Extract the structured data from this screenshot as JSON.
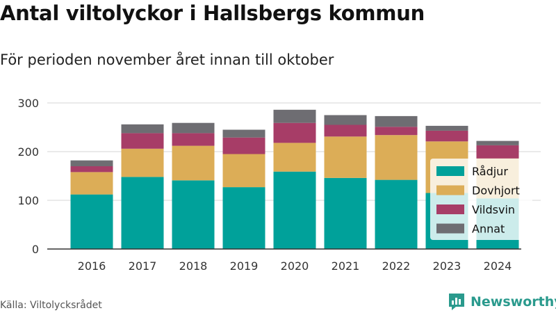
{
  "title": "Antal viltolyckor i Hallsbergs kommun",
  "subtitle": "För perioden november året innan till oktober",
  "source": "Källa: Viltolycksrådet",
  "brand": {
    "name": "Newsworthy",
    "icon": "newsworthy-logo-icon"
  },
  "colors": {
    "Rådjur": "#00a19a",
    "Dovhjort": "#dcad57",
    "Vildsvin": "#a73d67",
    "Annat": "#6e6d72",
    "grid": "#dddddd",
    "axis": "#333333"
  },
  "chart_data": {
    "type": "bar",
    "stacked": true,
    "categories": [
      "2016",
      "2017",
      "2018",
      "2019",
      "2020",
      "2021",
      "2022",
      "2023",
      "2024"
    ],
    "series": [
      {
        "name": "Rådjur",
        "values": [
          112,
          148,
          141,
          127,
          159,
          146,
          142,
          115,
          104
        ]
      },
      {
        "name": "Dovhjort",
        "values": [
          46,
          58,
          71,
          68,
          59,
          85,
          92,
          106,
          82
        ]
      },
      {
        "name": "Vildsvin",
        "values": [
          12,
          32,
          26,
          34,
          41,
          24,
          17,
          22,
          27
        ]
      },
      {
        "name": "Annat",
        "values": [
          12,
          18,
          21,
          16,
          27,
          20,
          22,
          10,
          9
        ]
      }
    ],
    "ylim": [
      0,
      300
    ],
    "yticks": [
      0,
      100,
      200,
      300
    ],
    "grid": true,
    "legend": {
      "placement": "right",
      "entries": [
        "Rådjur",
        "Dovhjort",
        "Vildsvin",
        "Annat"
      ]
    }
  }
}
